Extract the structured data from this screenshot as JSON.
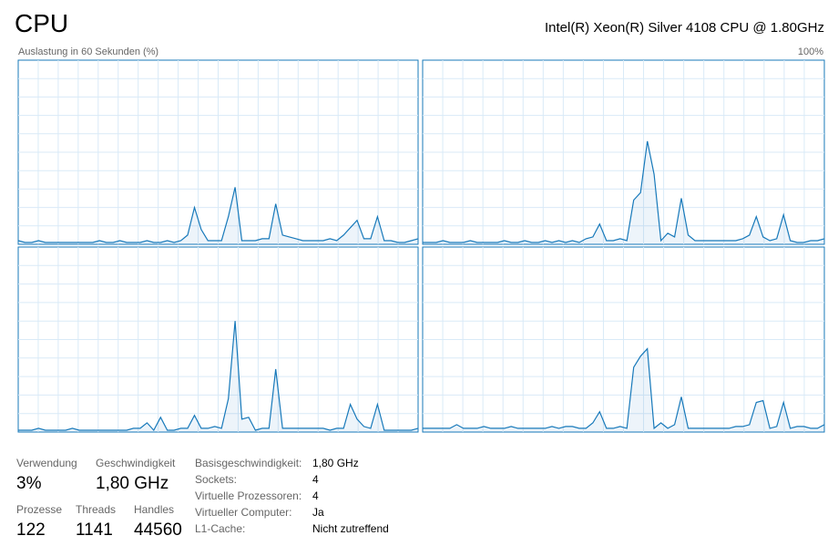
{
  "header": {
    "title": "CPU",
    "processor": "Intel(R) Xeon(R) Silver 4108 CPU @ 1.80GHz"
  },
  "graph_label": "Auslastung in 60 Sekunden (%)",
  "graph_max": "100%",
  "chart_data": [
    {
      "type": "line",
      "color": "#1779ba",
      "ylim": [
        0,
        100
      ],
      "values": [
        2,
        1,
        1,
        2,
        1,
        1,
        1,
        1,
        1,
        1,
        1,
        1,
        2,
        1,
        1,
        2,
        1,
        1,
        1,
        2,
        1,
        1,
        2,
        1,
        2,
        5,
        20,
        8,
        2,
        2,
        2,
        15,
        31,
        2,
        2,
        2,
        3,
        3,
        22,
        5,
        4,
        3,
        2,
        2,
        2,
        2,
        3,
        2,
        5,
        9,
        13,
        3,
        3,
        15,
        2,
        2,
        1,
        1,
        2,
        3
      ]
    },
    {
      "type": "line",
      "color": "#1779ba",
      "ylim": [
        0,
        100
      ],
      "values": [
        1,
        1,
        1,
        2,
        1,
        1,
        1,
        2,
        1,
        1,
        1,
        1,
        2,
        1,
        1,
        2,
        1,
        1,
        2,
        1,
        2,
        1,
        2,
        1,
        3,
        4,
        11,
        2,
        2,
        3,
        2,
        24,
        28,
        56,
        38,
        2,
        6,
        4,
        25,
        5,
        2,
        2,
        2,
        2,
        2,
        2,
        2,
        3,
        5,
        15,
        4,
        2,
        3,
        16,
        2,
        1,
        1,
        2,
        2,
        3
      ]
    },
    {
      "type": "line",
      "color": "#1779ba",
      "ylim": [
        0,
        100
      ],
      "values": [
        1,
        1,
        1,
        2,
        1,
        1,
        1,
        1,
        2,
        1,
        1,
        1,
        1,
        1,
        1,
        1,
        1,
        2,
        2,
        5,
        1,
        8,
        1,
        1,
        2,
        2,
        9,
        2,
        2,
        3,
        2,
        18,
        60,
        7,
        8,
        1,
        2,
        2,
        34,
        2,
        2,
        2,
        2,
        2,
        2,
        2,
        1,
        2,
        2,
        15,
        7,
        3,
        2,
        15,
        1,
        1,
        1,
        1,
        1,
        2
      ]
    },
    {
      "type": "line",
      "color": "#1779ba",
      "ylim": [
        0,
        100
      ],
      "values": [
        2,
        2,
        2,
        2,
        2,
        4,
        2,
        2,
        2,
        3,
        2,
        2,
        2,
        3,
        2,
        2,
        2,
        2,
        2,
        3,
        2,
        3,
        3,
        2,
        2,
        5,
        11,
        2,
        2,
        3,
        2,
        35,
        41,
        45,
        2,
        5,
        2,
        4,
        19,
        2,
        2,
        2,
        2,
        2,
        2,
        2,
        3,
        3,
        4,
        16,
        17,
        2,
        3,
        16,
        2,
        3,
        3,
        2,
        2,
        4
      ]
    }
  ],
  "stats": [
    {
      "label": "Verwendung",
      "value": "3%"
    },
    {
      "label": "Geschwindigkeit",
      "value": "1,80 GHz"
    },
    {
      "label": "Prozesse",
      "value": "122"
    },
    {
      "label": "Threads",
      "value": "1141"
    },
    {
      "label": "Handles",
      "value": "44560"
    }
  ],
  "details": [
    {
      "label": "Basisgeschwindigkeit:",
      "value": "1,80 GHz"
    },
    {
      "label": "Sockets:",
      "value": "4"
    },
    {
      "label": "Virtuelle Prozessoren:",
      "value": "4"
    },
    {
      "label": "Virtueller Computer:",
      "value": "Ja"
    },
    {
      "label": "L1-Cache:",
      "value": "Nicht zutreffend"
    }
  ]
}
